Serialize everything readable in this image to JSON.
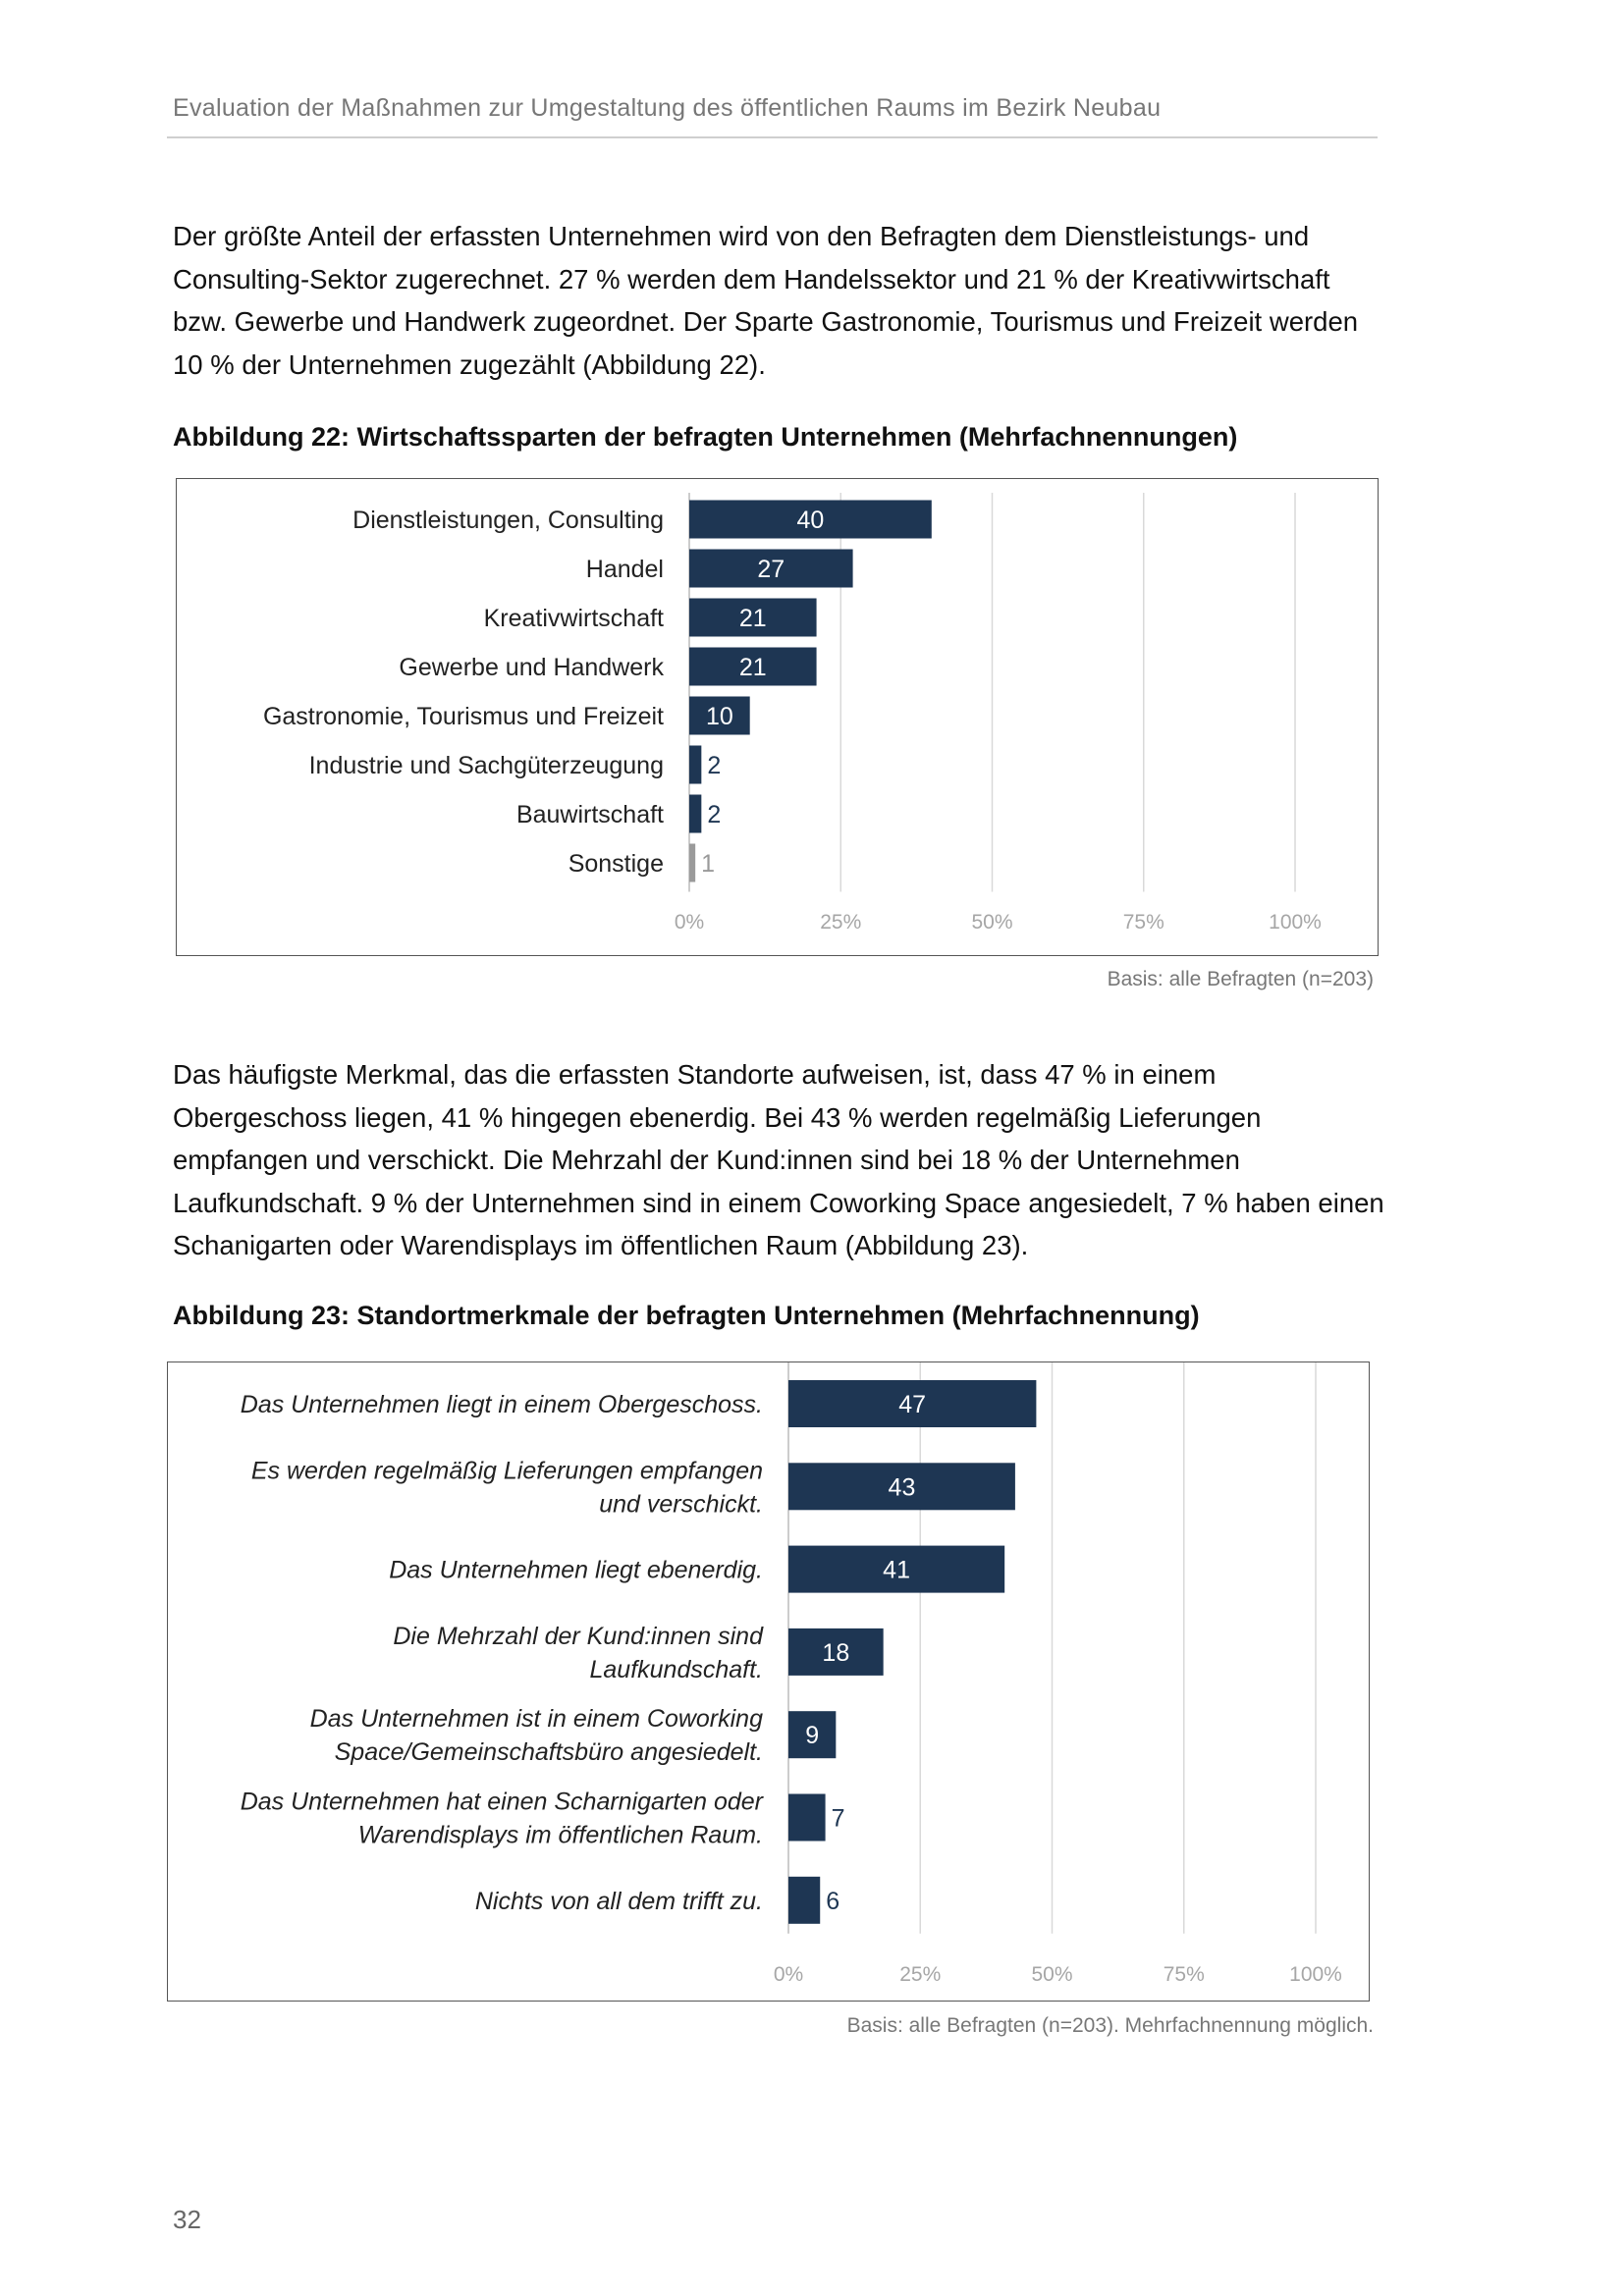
{
  "header": {
    "title": "Evaluation der Maßnahmen zur Umgestaltung des öffentlichen Raums im Bezirk Neubau"
  },
  "paragraph1": "Der größte Anteil der erfassten Unternehmen wird von den Befragten dem Dienstleistungs- und Consulting-Sektor zugerechnet. 27 % werden dem Handelssektor und 21 % der Kreativwirtschaft bzw. Gewerbe und Handwerk zugeordnet. Der Sparte Gastronomie, Tourismus und Freizeit werden 10 % der Unternehmen zugezählt (Abbildung 22).",
  "figure22": {
    "caption": "Abbildung 22: Wirtschaftssparten der befragten Unternehmen (Mehrfachnennungen)",
    "basis": "Basis: alle Befragten (n=203)"
  },
  "paragraph2": "Das häufigste Merkmal, das die erfassten Standorte aufweisen, ist, dass 47 % in einem Obergeschoss liegen, 41 % hingegen ebenerdig. Bei 43 % werden regelmäßig Lieferungen empfangen und verschickt. Die Mehrzahl der Kund:innen sind bei 18 % der Unternehmen Laufkundschaft. 9 % der Unternehmen sind in einem Coworking Space angesiedelt, 7 % haben einen Schanigarten oder Warendisplays im öffentlichen Raum (Abbildung 23).",
  "figure23": {
    "caption": "Abbildung 23: Standortmerkmale der befragten Unternehmen (Mehrfachnennung)",
    "basis": "Basis: alle Befragten (n=203). Mehrfachnennung möglich."
  },
  "page_number": "32",
  "colors": {
    "bar": "#1e3653",
    "bar_other": "#9a9a9a",
    "grid": "#d9d9d9",
    "tick": "#a6a6a6"
  },
  "chart_data": [
    {
      "type": "bar",
      "orientation": "horizontal",
      "title": "Abbildung 22: Wirtschaftssparten der befragten Unternehmen (Mehrfachnennungen)",
      "categories": [
        "Dienstleistungen, Consulting",
        "Handel",
        "Kreativwirtschaft",
        "Gewerbe und Handwerk",
        "Gastronomie, Tourismus und Freizeit",
        "Industrie und Sachgüterzeugung",
        "Bauwirtschaft",
        "Sonstige"
      ],
      "values": [
        40,
        27,
        21,
        21,
        10,
        2,
        2,
        1
      ],
      "xlim": [
        0,
        100
      ],
      "xticks": [
        "0%",
        "25%",
        "50%",
        "75%",
        "100%"
      ],
      "grid": true,
      "label_style": "normal"
    },
    {
      "type": "bar",
      "orientation": "horizontal",
      "title": "Abbildung 23: Standortmerkmale der befragten Unternehmen (Mehrfachnennung)",
      "categories": [
        [
          "Das Unternehmen liegt in einem Obergeschoss."
        ],
        [
          "Es werden regelmäßig Lieferungen empfangen",
          "und verschickt."
        ],
        [
          "Das Unternehmen liegt ebenerdig."
        ],
        [
          "Die Mehrzahl der Kund:innen sind",
          "Laufkundschaft."
        ],
        [
          "Das Unternehmen ist in einem Coworking",
          "Space/Gemeinschaftsbüro angesiedelt."
        ],
        [
          "Das Unternehmen hat einen Scharnigarten oder",
          "Warendisplays im öffentlichen Raum."
        ],
        [
          "Nichts von all dem trifft zu."
        ]
      ],
      "values": [
        47,
        43,
        41,
        18,
        9,
        7,
        6
      ],
      "xlim": [
        0,
        100
      ],
      "xticks": [
        "0%",
        "25%",
        "50%",
        "75%",
        "100%"
      ],
      "grid": true,
      "label_style": "italic"
    }
  ]
}
